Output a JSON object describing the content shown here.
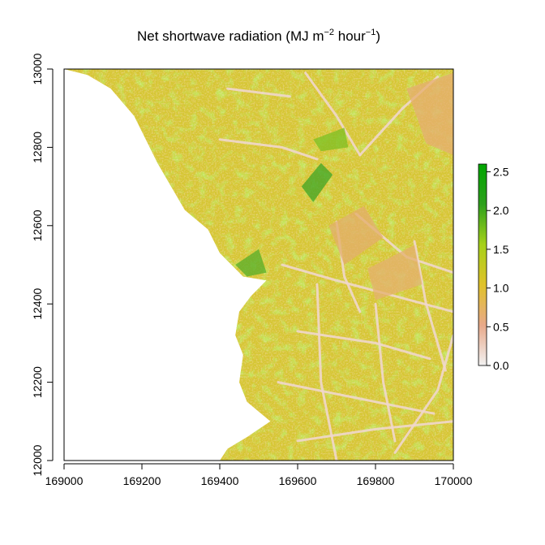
{
  "chart_data": {
    "type": "heatmap",
    "title": {
      "main": "Net shortwave radiation (MJ m",
      "sup1": "−2",
      "mid": " hour",
      "sup2": "−1",
      "end": ")"
    },
    "xlabel": "",
    "ylabel": "",
    "xlim": [
      169000,
      170000
    ],
    "ylim": [
      12000,
      13000
    ],
    "x_ticks": [
      169000,
      169200,
      169400,
      169600,
      169800,
      170000
    ],
    "y_ticks": [
      12000,
      12200,
      12400,
      12600,
      12800,
      13000
    ],
    "colorbar": {
      "range": [
        0.0,
        2.6
      ],
      "ticks": [
        0.0,
        0.5,
        1.0,
        1.5,
        2.0,
        2.5
      ],
      "tick_labels": [
        "0.0",
        "0.5",
        "1.0",
        "1.5",
        "2.0",
        "2.5"
      ],
      "colors": [
        "#f2f2f2",
        "#e8a98a",
        "#e0c22a",
        "#a6d11a",
        "#2ea01d",
        "#00a600"
      ]
    },
    "no_data_region": "west (sea)",
    "coastline": [
      [
        169000,
        13000
      ],
      [
        169060,
        12985
      ],
      [
        169120,
        12950
      ],
      [
        169180,
        12880
      ],
      [
        169240,
        12760
      ],
      [
        169310,
        12640
      ],
      [
        169370,
        12590
      ],
      [
        169400,
        12530
      ],
      [
        169460,
        12470
      ],
      [
        169520,
        12460
      ],
      [
        169480,
        12420
      ],
      [
        169450,
        12380
      ],
      [
        169440,
        12320
      ],
      [
        169460,
        12270
      ],
      [
        169450,
        12200
      ],
      [
        169470,
        12150
      ],
      [
        169530,
        12100
      ],
      [
        169470,
        12060
      ],
      [
        169420,
        12030
      ],
      [
        169400,
        12000
      ]
    ],
    "field_boundaries": [
      [
        [
          169620,
          12990
        ],
        [
          169700,
          12880
        ],
        [
          169760,
          12780
        ]
      ],
      [
        [
          169420,
          12950
        ],
        [
          169580,
          12930
        ]
      ],
      [
        [
          169400,
          12820
        ],
        [
          169560,
          12800
        ],
        [
          169650,
          12770
        ]
      ],
      [
        [
          169760,
          12780
        ],
        [
          169870,
          12900
        ],
        [
          169960,
          12980
        ]
      ],
      [
        [
          169750,
          12630
        ],
        [
          169880,
          12520
        ],
        [
          170000,
          12480
        ]
      ],
      [
        [
          169700,
          12610
        ],
        [
          169720,
          12470
        ],
        [
          169760,
          12380
        ]
      ],
      [
        [
          169560,
          12500
        ],
        [
          169700,
          12460
        ],
        [
          169850,
          12420
        ],
        [
          170000,
          12380
        ]
      ],
      [
        [
          169600,
          12330
        ],
        [
          169800,
          12300
        ],
        [
          169940,
          12260
        ]
      ],
      [
        [
          169550,
          12200
        ],
        [
          169750,
          12160
        ],
        [
          169950,
          12120
        ]
      ],
      [
        [
          169600,
          12050
        ],
        [
          169800,
          12080
        ],
        [
          170000,
          12100
        ]
      ],
      [
        [
          169800,
          12400
        ],
        [
          169820,
          12200
        ],
        [
          169850,
          12050
        ]
      ],
      [
        [
          169900,
          12560
        ],
        [
          169930,
          12400
        ],
        [
          169980,
          12230
        ]
      ],
      [
        [
          169650,
          12450
        ],
        [
          169660,
          12200
        ],
        [
          169700,
          12000
        ]
      ],
      [
        [
          169850,
          12020
        ],
        [
          169960,
          12180
        ],
        [
          170000,
          12320
        ]
      ]
    ]
  }
}
